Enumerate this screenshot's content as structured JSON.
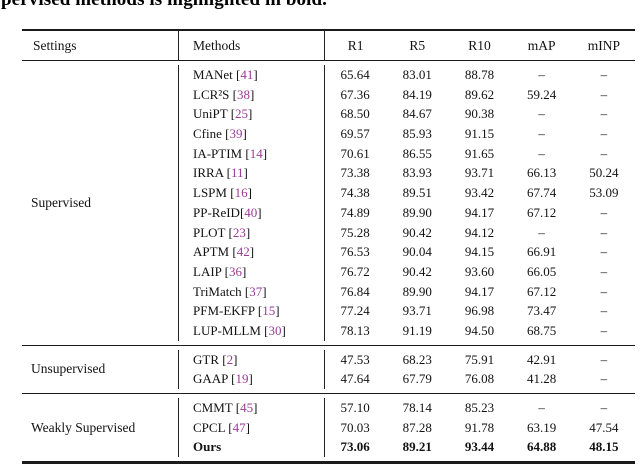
{
  "caption_fragment": "pervised methods is highlighted in bold.",
  "table": {
    "columns": [
      "Settings",
      "Methods",
      "R1",
      "R5",
      "R10",
      "mAP",
      "mINP"
    ],
    "citation_color": "#9c3a98",
    "missing_value": "–",
    "sections": [
      {
        "setting": "Supervised",
        "rows": [
          {
            "method": "MANet",
            "cite": "41",
            "vals": [
              "65.64",
              "83.01",
              "88.78",
              "–",
              "–"
            ]
          },
          {
            "method": "LCR²S",
            "cite": "38",
            "vals": [
              "67.36",
              "84.19",
              "89.62",
              "59.24",
              "–"
            ]
          },
          {
            "method": "UniPT",
            "cite": "25",
            "vals": [
              "68.50",
              "84.67",
              "90.38",
              "–",
              "–"
            ]
          },
          {
            "method": "Cfine",
            "cite": "39",
            "vals": [
              "69.57",
              "85.93",
              "91.15",
              "–",
              "–"
            ]
          },
          {
            "method": "IA-PTIM",
            "cite": "14",
            "vals": [
              "70.61",
              "86.55",
              "91.65",
              "–",
              "–"
            ]
          },
          {
            "method": "IRRA",
            "cite": "11",
            "vals": [
              "73.38",
              "83.93",
              "93.71",
              "66.13",
              "50.24"
            ]
          },
          {
            "method": "LSPM",
            "cite": "16",
            "vals": [
              "74.38",
              "89.51",
              "93.42",
              "67.74",
              "53.09"
            ]
          },
          {
            "method": "PP-ReID",
            "cite": "40",
            "nospace": true,
            "vals": [
              "74.89",
              "89.90",
              "94.17",
              "67.12",
              "–"
            ]
          },
          {
            "method": "PLOT",
            "cite": "23",
            "vals": [
              "75.28",
              "90.42",
              "94.12",
              "–",
              "–"
            ]
          },
          {
            "method": "APTM",
            "cite": "42",
            "vals": [
              "76.53",
              "90.04",
              "94.15",
              "66.91",
              "–"
            ]
          },
          {
            "method": "LAIP",
            "cite": "36",
            "vals": [
              "76.72",
              "90.42",
              "93.60",
              "66.05",
              "–"
            ]
          },
          {
            "method": "TriMatch",
            "cite": "37",
            "vals": [
              "76.84",
              "89.90",
              "94.17",
              "67.12",
              "–"
            ]
          },
          {
            "method": "PFM-EKFP",
            "cite": "15",
            "vals": [
              "77.24",
              "93.71",
              "96.98",
              "73.47",
              "–"
            ]
          },
          {
            "method": "LUP-MLLM",
            "cite": "30",
            "vals": [
              "78.13",
              "91.19",
              "94.50",
              "68.75",
              "–"
            ]
          }
        ]
      },
      {
        "setting": "Unsupervised",
        "rows": [
          {
            "method": "GTR",
            "cite": "2",
            "vals": [
              "47.53",
              "68.23",
              "75.91",
              "42.91",
              "–"
            ]
          },
          {
            "method": "GAAP",
            "cite": "19",
            "vals": [
              "47.64",
              "67.79",
              "76.08",
              "41.28",
              "–"
            ]
          }
        ]
      },
      {
        "setting": "Weakly Supervised",
        "rows": [
          {
            "method": "CMMT",
            "cite": "45",
            "vals": [
              "57.10",
              "78.14",
              "85.23",
              "–",
              "–"
            ]
          },
          {
            "method": "CPCL",
            "cite": "47",
            "vals": [
              "70.03",
              "87.28",
              "91.78",
              "63.19",
              "47.54"
            ]
          },
          {
            "method": "Ours",
            "cite": null,
            "bold": true,
            "vals": [
              "73.06",
              "89.21",
              "93.44",
              "64.88",
              "48.15"
            ]
          }
        ]
      }
    ]
  }
}
